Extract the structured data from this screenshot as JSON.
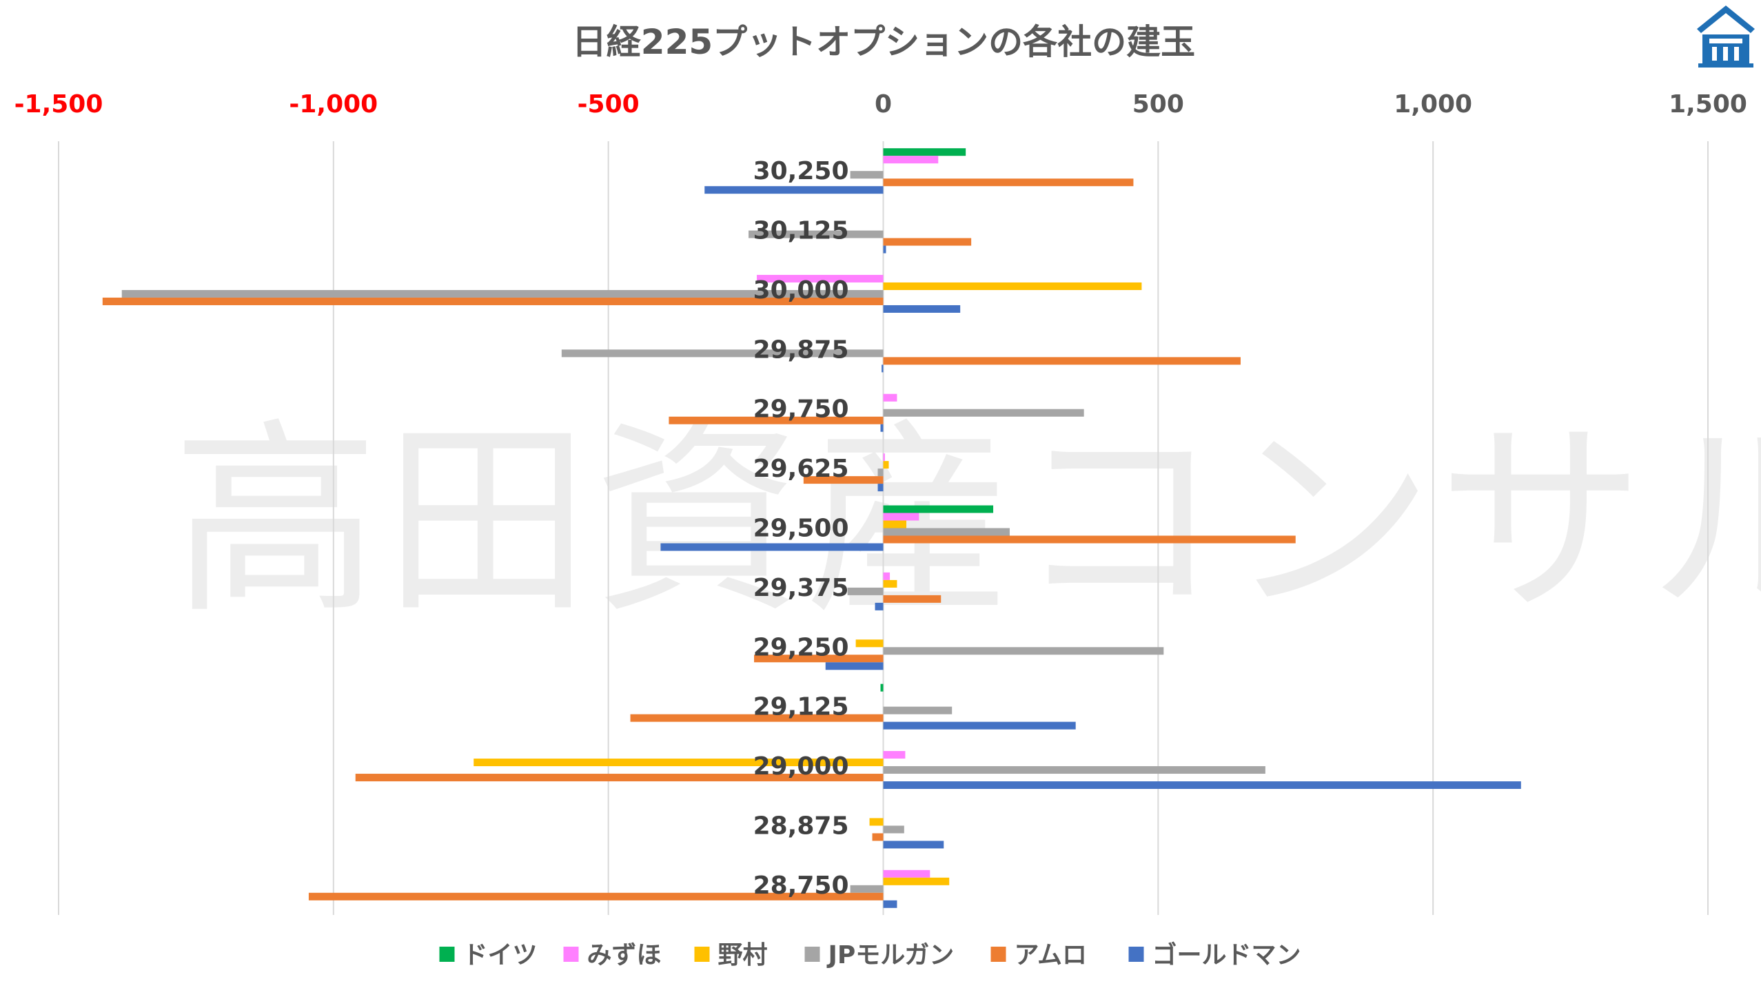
{
  "chart_data": {
    "type": "bar",
    "orientation": "horizontal",
    "title": "日経225プットオプションの各社の建玉",
    "watermark": "高田資産コンサル",
    "xlim": [
      -1500,
      1500
    ],
    "x_ticks": [
      -1500,
      -1000,
      -500,
      0,
      500,
      1000,
      1500
    ],
    "x_tick_labels": [
      "-1,500",
      "-1,000",
      "-500",
      "0",
      "500",
      "1,000",
      "1,500"
    ],
    "negative_tick_color": "#FF0000",
    "positive_tick_color": "#595959",
    "grid": true,
    "legend_position": "bottom",
    "categories": [
      "30,250",
      "30,125",
      "30,000",
      "29,875",
      "29,750",
      "29,625",
      "29,500",
      "29,375",
      "29,250",
      "29,125",
      "29,000",
      "28,875",
      "28,750"
    ],
    "series": [
      {
        "name": "ドイツ",
        "color": "#00B050",
        "values": [
          150,
          0,
          0,
          0,
          0,
          0,
          200,
          0,
          0,
          -5,
          0,
          0,
          0
        ]
      },
      {
        "name": "みずほ",
        "color": "#FF80FF",
        "values": [
          100,
          0,
          -230,
          0,
          25,
          3,
          65,
          12,
          0,
          0,
          40,
          0,
          85
        ]
      },
      {
        "name": "野村",
        "color": "#FFC000",
        "values": [
          0,
          0,
          470,
          0,
          0,
          10,
          42,
          25,
          -50,
          0,
          -745,
          -25,
          120
        ]
      },
      {
        "name": "JPモルガン",
        "color": "#A5A5A5",
        "values": [
          -60,
          -245,
          -1385,
          -585,
          365,
          -10,
          230,
          -65,
          510,
          125,
          695,
          38,
          -60
        ]
      },
      {
        "name": "アムロ",
        "color": "#ED7D31",
        "values": [
          455,
          160,
          -1420,
          650,
          -390,
          -145,
          750,
          105,
          -235,
          -460,
          -960,
          -20,
          -1045
        ]
      },
      {
        "name": "ゴールドマン",
        "color": "#4472C4",
        "values": [
          -325,
          5,
          140,
          -3,
          -5,
          -10,
          -405,
          -15,
          -105,
          350,
          1160,
          110,
          25
        ]
      }
    ]
  },
  "logo": {
    "icon": "building-logo-icon",
    "color": "#1F6FB5"
  }
}
